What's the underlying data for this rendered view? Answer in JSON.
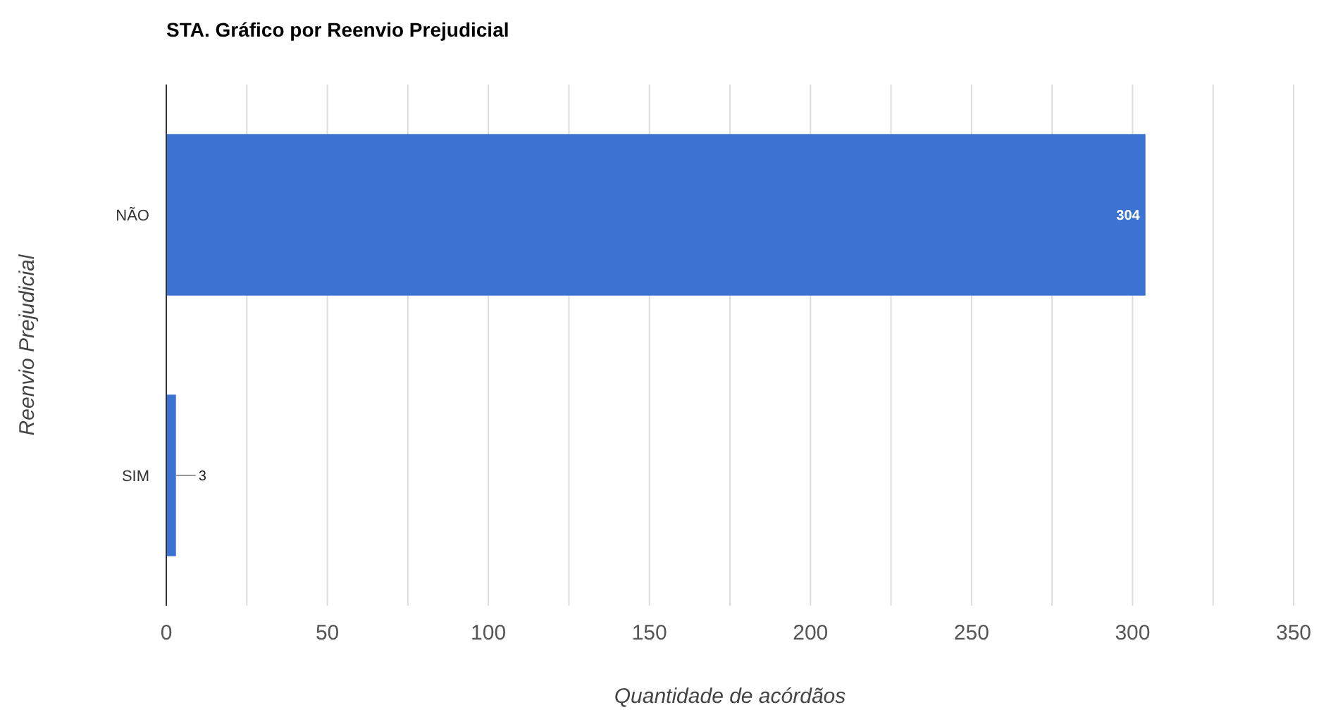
{
  "chart_data": {
    "type": "bar",
    "orientation": "horizontal",
    "title": "STA. Gráfico por Reenvio Prejudicial",
    "xlabel": "Quantidade de acórdãos",
    "ylabel": "Reenvio Prejudicial",
    "categories": [
      "NÃO",
      "SIM"
    ],
    "values": [
      304,
      3
    ],
    "color": "#3c73d3",
    "data_labels": true,
    "grid": "x",
    "xlim": [
      0,
      350
    ],
    "xticks": [
      0,
      {
        "value": 25,
        "label": null
      },
      50,
      {
        "value": 75,
        "label": null
      },
      100,
      {
        "value": 125,
        "label": null
      },
      150,
      {
        "value": 175,
        "label": null
      },
      200,
      {
        "value": 225,
        "label": null
      },
      250,
      {
        "value": 275,
        "label": null
      },
      300,
      {
        "value": 325,
        "label": null
      },
      350
    ]
  }
}
